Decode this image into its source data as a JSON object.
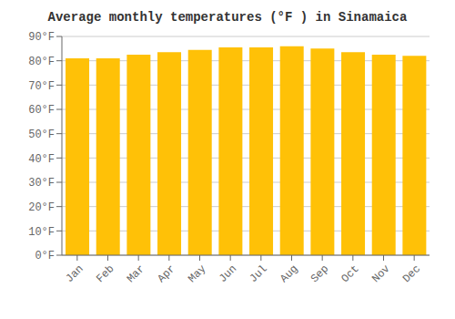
{
  "chart_data": {
    "type": "bar",
    "title": "Average monthly temperatures (°F ) in Sinamaica",
    "categories": [
      "Jan",
      "Feb",
      "Mar",
      "Apr",
      "May",
      "Jun",
      "Jul",
      "Aug",
      "Sep",
      "Oct",
      "Nov",
      "Dec"
    ],
    "values": [
      81,
      81,
      82.5,
      83.5,
      84.5,
      85.5,
      85.5,
      86,
      85,
      83.5,
      82.5,
      82
    ],
    "color": "#FFC107",
    "ylim": [
      0,
      90
    ],
    "yticks": [
      {
        "value": 0,
        "label": "0°F"
      },
      {
        "value": 10,
        "label": "10°F"
      },
      {
        "value": 20,
        "label": "20°F"
      },
      {
        "value": 30,
        "label": "30°F"
      },
      {
        "value": 40,
        "label": "40°F"
      },
      {
        "value": 50,
        "label": "50°F"
      },
      {
        "value": 60,
        "label": "60°F"
      },
      {
        "value": 70,
        "label": "70°F"
      },
      {
        "value": 80,
        "label": "80°F"
      },
      {
        "value": 90,
        "label": "90°F"
      }
    ],
    "grid": true
  }
}
